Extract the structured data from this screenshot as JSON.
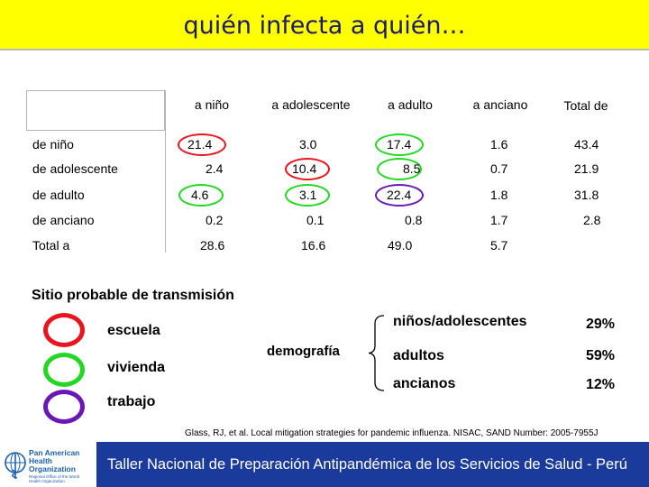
{
  "title": "quién infecta a quién…",
  "table": {
    "col_headers": [
      "a niño",
      "a adolescente",
      "a adulto",
      "a anciano",
      "Total de"
    ],
    "rows": [
      {
        "label": "de niño",
        "values": [
          "21.4",
          "3.0",
          "17.4",
          "1.6",
          "43.4"
        ]
      },
      {
        "label": "de adolescente",
        "values": [
          "2.4",
          "10.4",
          "8.5",
          "0.7",
          "21.9"
        ]
      },
      {
        "label": "de adulto",
        "values": [
          "4.6",
          "3.1",
          "22.4",
          "1.8",
          "31.8"
        ]
      },
      {
        "label": "de anciano",
        "values": [
          "0.2",
          "0.1",
          "0.8",
          "1.7",
          "2.8"
        ]
      },
      {
        "label": "Total a",
        "values": [
          "28.6",
          "16.6",
          "49.0",
          "5.7",
          ""
        ]
      }
    ]
  },
  "legend": {
    "title": "Sitio probable de transmisión",
    "items": [
      {
        "label": "escuela",
        "color": "#e8141e"
      },
      {
        "label": "vivienda",
        "color": "#22d822"
      },
      {
        "label": "trabajo",
        "color": "#6a17b8"
      }
    ]
  },
  "demografia": {
    "label": "demografía",
    "groups": [
      {
        "name": "niños/adolescentes",
        "pct": "29%"
      },
      {
        "name": "adultos",
        "pct": "59%"
      },
      {
        "name": "ancianos",
        "pct": "12%"
      }
    ]
  },
  "citation": "Glass, RJ, et al. Local mitigation strategies for pandemic influenza.  NISAC, SAND Number: 2005-7955J",
  "footer": {
    "logo_text": [
      "Pan American",
      "Health",
      "Organization"
    ],
    "logo_sub": "Regional Office of the World Health Organization",
    "banner": "Taller Nacional de Preparación Antipandémica de los Servicios de Salud - Perú"
  }
}
